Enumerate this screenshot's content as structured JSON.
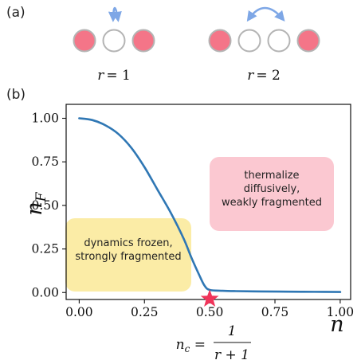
{
  "panel_a": {
    "label": "(a)",
    "configs": [
      {
        "label": "r = 1",
        "sites": [
          "filled",
          "empty",
          "filled"
        ]
      },
      {
        "label": "r = 2",
        "sites": [
          "filled",
          "empty",
          "empty",
          "filled"
        ]
      }
    ],
    "hop_arrow_icon": "double-headed-curved-arrow"
  },
  "panel_b": {
    "label": "(b)",
    "chart_data": {
      "type": "line",
      "xlabel": "n",
      "ylabel": "n_F",
      "xlim": [
        -0.05,
        1.04
      ],
      "ylim": [
        -0.04,
        1.08
      ],
      "xticks": [
        "0.00",
        "0.25",
        "0.50",
        "0.75",
        "1.00"
      ],
      "yticks": [
        "0.00",
        "0.25",
        "0.50",
        "0.75",
        "1.00"
      ],
      "grid": false,
      "series": [
        {
          "color": "#2f77b4",
          "x": [
            0.0,
            0.05,
            0.1,
            0.15,
            0.2,
            0.25,
            0.3,
            0.35,
            0.4,
            0.43,
            0.46,
            0.48,
            0.5,
            0.55,
            0.6,
            0.7,
            0.8,
            0.9,
            1.0
          ],
          "y": [
            1.0,
            0.99,
            0.96,
            0.91,
            0.83,
            0.72,
            0.59,
            0.46,
            0.31,
            0.2,
            0.1,
            0.04,
            0.015,
            0.01,
            0.008,
            0.006,
            0.005,
            0.004,
            0.003
          ]
        }
      ],
      "marker": {
        "x": 0.5,
        "y": 0.0,
        "shape": "star",
        "color": "#f0345a"
      },
      "critical_label": {
        "lhs": "n_c =",
        "numerator": "1",
        "denominator": "r + 1"
      },
      "regions": [
        {
          "lines": [
            "dynamics frozen,",
            "strongly fragmented"
          ],
          "color": "#fbeca6"
        },
        {
          "lines": [
            "thermalize",
            "diffusively,",
            "weakly fragmented"
          ],
          "color": "#fbc8d1"
        }
      ]
    }
  },
  "colors": {
    "filled_site": "#f47588",
    "empty_site": "#ffffff",
    "site_outline": "#b4b4b4",
    "arrow": "#7ea7e6",
    "axes": "#111111"
  }
}
